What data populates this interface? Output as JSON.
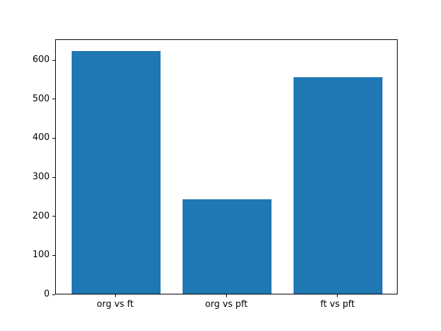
{
  "figure": {
    "background": "#ffffff",
    "axis_color": "#000000",
    "bar_color": "#1f77b4"
  },
  "chart_data": {
    "type": "bar",
    "categories": [
      "org vs ft",
      "org vs pft",
      "ft vs pft"
    ],
    "values": [
      622,
      242,
      554
    ],
    "title": "",
    "xlabel": "",
    "ylabel": "",
    "ylim": [
      0,
      653
    ],
    "yticks": [
      0,
      100,
      200,
      300,
      400,
      500,
      600
    ],
    "grid": false,
    "legend": false,
    "bar_color": "#1f77b4"
  }
}
